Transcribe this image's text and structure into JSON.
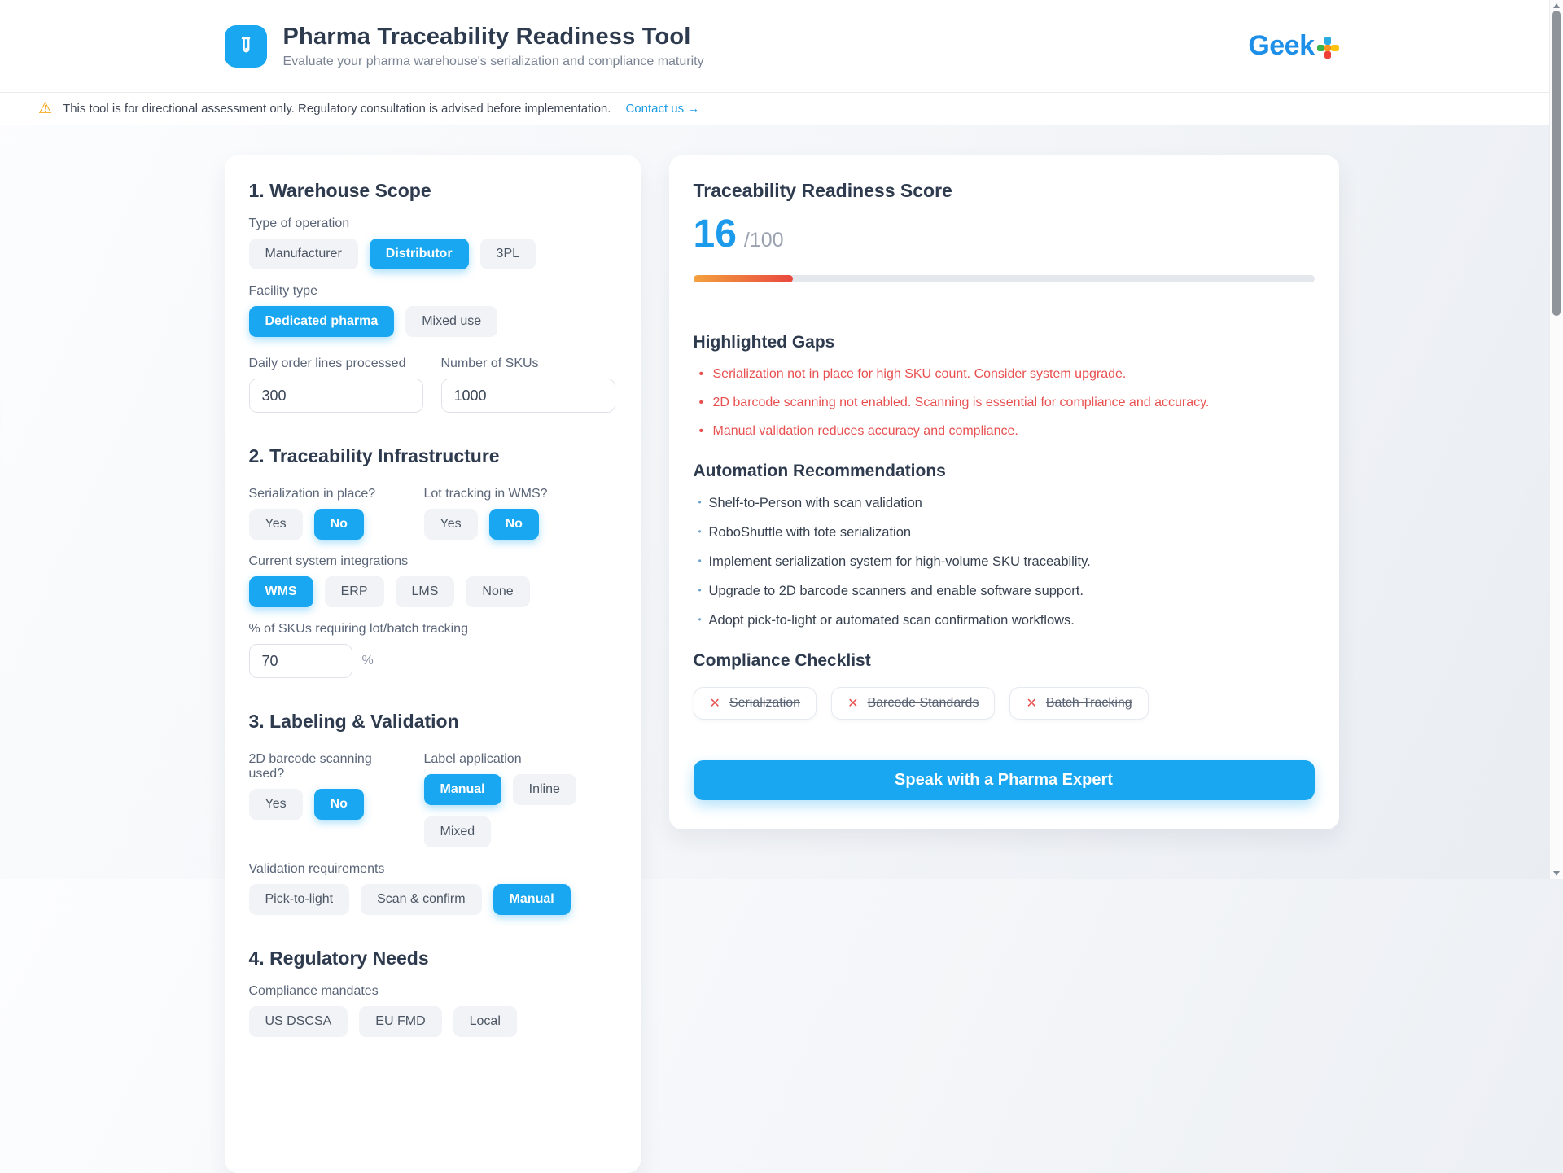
{
  "colors": {
    "accent_blue": "#18a7f0",
    "danger_red": "#e85050",
    "progress_gradient": [
      "#f3a13e",
      "#e9483f"
    ],
    "heading_navy": "#2e3a4e"
  },
  "icons": {
    "warning": "⚠",
    "cross": "✕"
  },
  "header": {
    "title": "Pharma Traceability Readiness Tool",
    "subtitle": "Evaluate your pharma warehouse's serialization and compliance maturity",
    "brand_text": "Geek"
  },
  "disclaimer": {
    "message": "This tool is for directional assessment only. Regulatory consultation is advised before implementation.",
    "link_label": "Contact us →"
  },
  "form": {
    "yesno": [
      "Yes",
      "No"
    ],
    "section1": {
      "heading": "1. Warehouse Scope",
      "operation_label": "Type of operation",
      "operation_options": [
        "Manufacturer",
        "Distributor",
        "3PL"
      ],
      "operation_selected": "Distributor",
      "facility_label": "Facility type",
      "facility_options": [
        "Dedicated pharma",
        "Mixed use"
      ],
      "facility_selected": "Dedicated pharma",
      "daily_lines_label": "Daily order lines processed",
      "daily_lines_value": "300",
      "skus_label": "Number of SKUs",
      "skus_value": "1000"
    },
    "section2": {
      "heading": "2. Traceability Infrastructure",
      "serialization_label": "Serialization in place?",
      "serialization_selected": "No",
      "lot_tracking_label": "Lot tracking in WMS?",
      "lot_tracking_selected": "No",
      "integrations_label": "Current system integrations",
      "integrations_options": [
        "WMS",
        "ERP",
        "LMS",
        "None"
      ],
      "integrations_selected": "WMS",
      "lot_pct_label": "% of SKUs requiring lot/batch tracking",
      "lot_pct_value": "70",
      "pct_suffix": "%"
    },
    "section3": {
      "heading": "3. Labeling & Validation",
      "barcode_label": "2D barcode scanning used?",
      "barcode_selected": "No",
      "label_app_label": "Label application",
      "label_app_options": [
        "Manual",
        "Inline",
        "Mixed"
      ],
      "label_app_selected": "Manual",
      "validation_label": "Validation requirements",
      "validation_options": [
        "Pick-to-light",
        "Scan & confirm",
        "Manual"
      ],
      "validation_selected": "Manual"
    },
    "section4": {
      "heading": "4. Regulatory Needs",
      "mandates_label": "Compliance mandates",
      "mandates_options": [
        "US DSCSA",
        "EU FMD",
        "Local"
      ]
    }
  },
  "results": {
    "heading": "Traceability Readiness Score",
    "score": "16",
    "score_max": "/100",
    "progress_pct": 16,
    "gaps_heading": "Highlighted Gaps",
    "gaps": [
      "Serialization not in place for high SKU count. Consider system upgrade.",
      "2D barcode scanning not enabled. Scanning is essential for compliance and accuracy.",
      "Manual validation reduces accuracy and compliance."
    ],
    "recs_heading": "Automation Recommendations",
    "recs": [
      "Shelf-to-Person with scan validation",
      "RoboShuttle with tote serialization",
      "Implement serialization system for high-volume SKU traceability.",
      "Upgrade to 2D barcode scanners and enable software support.",
      "Adopt pick-to-light or automated scan confirmation workflows."
    ],
    "checklist_heading": "Compliance Checklist",
    "checklist": [
      "Serialization",
      "Barcode Standards",
      "Batch Tracking"
    ],
    "cta_label": "Speak with a Pharma Expert"
  }
}
